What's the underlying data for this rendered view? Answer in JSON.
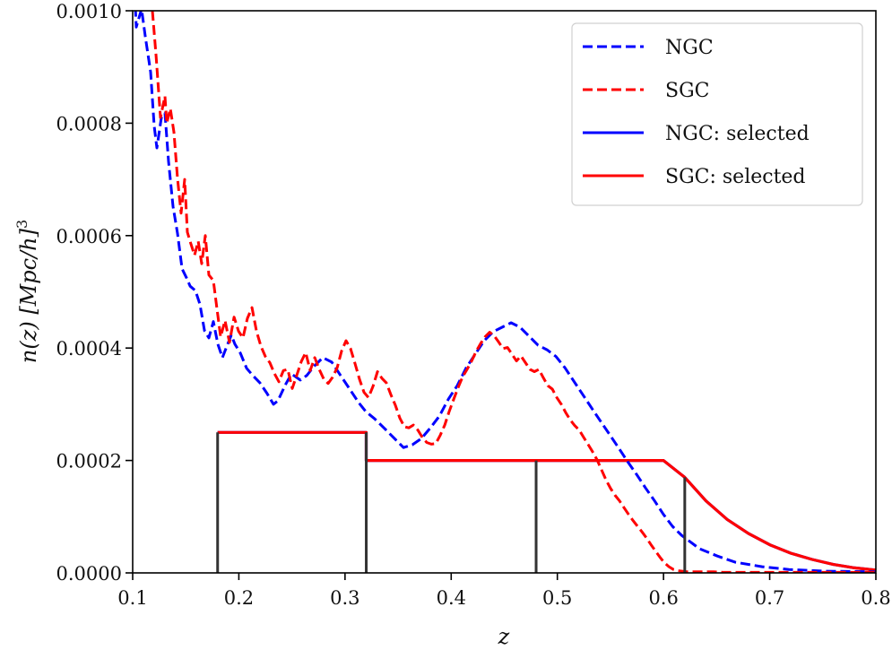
{
  "chart_data": {
    "type": "line",
    "title": "",
    "xlabel": "z",
    "ylabel": "n(z) [Mpc/h]^3",
    "xlim": [
      0.1,
      0.8
    ],
    "ylim": [
      0.0,
      0.001
    ],
    "xticks": [
      0.1,
      0.2,
      0.3,
      0.4,
      0.5,
      0.6,
      0.7,
      0.8
    ],
    "xtick_labels": [
      "0.1",
      "0.2",
      "0.3",
      "0.4",
      "0.5",
      "0.6",
      "0.7",
      "0.8"
    ],
    "yticks": [
      0.0,
      0.0002,
      0.0004,
      0.0006,
      0.0008,
      0.001
    ],
    "ytick_labels": [
      "0.0000",
      "0.0002",
      "0.0004",
      "0.0006",
      "0.0008",
      "0.0010"
    ],
    "grid": false,
    "legend_position": "upper right",
    "legend": [
      {
        "label": "NGC",
        "color": "#0000ff",
        "style": "dashed"
      },
      {
        "label": "SGC",
        "color": "#ff0000",
        "style": "dashed"
      },
      {
        "label": "NGC: selected",
        "color": "#0000ff",
        "style": "solid"
      },
      {
        "label": "SGC: selected",
        "color": "#ff0000",
        "style": "solid"
      }
    ],
    "series": [
      {
        "name": "NGC",
        "color": "#0000ff",
        "style": "dashed",
        "x": [
          0.1025,
          0.1034,
          0.1084,
          0.1118,
          0.1169,
          0.1203,
          0.1228,
          0.127,
          0.1304,
          0.1338,
          0.138,
          0.1422,
          0.1465,
          0.1507,
          0.1541,
          0.1591,
          0.1633,
          0.1676,
          0.1718,
          0.176,
          0.1802,
          0.1845,
          0.1878,
          0.1929,
          0.1963,
          0.2014,
          0.2073,
          0.2132,
          0.2199,
          0.2267,
          0.2326,
          0.2368,
          0.2436,
          0.2495,
          0.2579,
          0.2639,
          0.2706,
          0.2791,
          0.2875,
          0.2959,
          0.3044,
          0.3128,
          0.3196,
          0.328,
          0.3382,
          0.3466,
          0.3551,
          0.3635,
          0.372,
          0.3804,
          0.3889,
          0.3973,
          0.4057,
          0.4142,
          0.4226,
          0.4311,
          0.4395,
          0.448,
          0.4564,
          0.4649,
          0.4733,
          0.4818,
          0.4902,
          0.4986,
          0.5071,
          0.5155,
          0.524,
          0.5324,
          0.5409,
          0.5493,
          0.5578,
          0.5662,
          0.5747,
          0.5831,
          0.5916,
          0.6,
          0.6084,
          0.6169,
          0.6338,
          0.6507,
          0.6676,
          0.6929,
          0.7182,
          0.752,
          0.8
        ],
        "y": [
          0.001007,
          0.000971,
          0.001003,
          0.000955,
          0.000891,
          0.000795,
          0.000756,
          0.00081,
          0.000818,
          0.000732,
          0.000652,
          0.000604,
          0.000541,
          0.000525,
          0.00051,
          0.000502,
          0.000478,
          0.000431,
          0.000418,
          0.000447,
          0.000407,
          0.000383,
          0.000399,
          0.000423,
          0.000407,
          0.000391,
          0.000364,
          0.000351,
          0.000338,
          0.000319,
          0.0003,
          0.000306,
          0.000334,
          0.000354,
          0.000343,
          0.000351,
          0.000367,
          0.000383,
          0.000375,
          0.000351,
          0.000327,
          0.000303,
          0.000287,
          0.000274,
          0.000255,
          0.000239,
          0.000223,
          0.000228,
          0.000239,
          0.000258,
          0.000279,
          0.000309,
          0.000333,
          0.000365,
          0.000389,
          0.000413,
          0.000429,
          0.000437,
          0.000445,
          0.000437,
          0.000421,
          0.000405,
          0.000397,
          0.000385,
          0.000365,
          0.000341,
          0.000317,
          0.000293,
          0.000269,
          0.000246,
          0.000222,
          0.000198,
          0.000175,
          0.000151,
          0.000128,
          0.000104,
          8.3e-05,
          6.7e-05,
          4.3e-05,
          3e-05,
          1.9e-05,
          1.1e-05,
          6e-06,
          3e-06,
          2e-06
        ]
      },
      {
        "name": "SGC",
        "color": "#ff0000",
        "style": "dashed",
        "x": [
          0.1186,
          0.122,
          0.1262,
          0.1304,
          0.1321,
          0.1355,
          0.1388,
          0.1422,
          0.1456,
          0.149,
          0.1515,
          0.1549,
          0.1583,
          0.1617,
          0.165,
          0.1684,
          0.1718,
          0.176,
          0.1794,
          0.1828,
          0.187,
          0.1912,
          0.1955,
          0.1997,
          0.2039,
          0.2081,
          0.2124,
          0.2166,
          0.2208,
          0.225,
          0.2292,
          0.2334,
          0.2377,
          0.2419,
          0.2461,
          0.2503,
          0.2546,
          0.2588,
          0.263,
          0.2672,
          0.2715,
          0.2757,
          0.2799,
          0.2841,
          0.2883,
          0.2926,
          0.2968,
          0.301,
          0.3052,
          0.3095,
          0.3137,
          0.3179,
          0.3221,
          0.3264,
          0.3306,
          0.3348,
          0.339,
          0.3432,
          0.3475,
          0.3517,
          0.3559,
          0.3601,
          0.3644,
          0.3686,
          0.3728,
          0.377,
          0.3813,
          0.3855,
          0.3897,
          0.3939,
          0.3981,
          0.4024,
          0.4066,
          0.4108,
          0.415,
          0.4193,
          0.4235,
          0.4277,
          0.4319,
          0.4362,
          0.4404,
          0.4446,
          0.4488,
          0.453,
          0.4573,
          0.4615,
          0.4657,
          0.4699,
          0.4742,
          0.4784,
          0.4826,
          0.4868,
          0.491,
          0.4953,
          0.4995,
          0.5037,
          0.5079,
          0.5122,
          0.5164,
          0.5206,
          0.5248,
          0.5291,
          0.5333,
          0.5375,
          0.5417,
          0.5459,
          0.5502,
          0.5544,
          0.5586,
          0.5628,
          0.5671,
          0.5713,
          0.5755,
          0.5797,
          0.584,
          0.5882,
          0.5924,
          0.5966,
          0.6008,
          0.6051,
          0.6093,
          0.6135,
          0.6177,
          0.622,
          0.6304,
          0.6389,
          0.6473,
          0.6558,
          0.6642,
          0.6811,
          0.698,
          0.7149,
          0.7318,
          0.7487,
          0.7656,
          0.7825,
          0.8
        ],
        "y": [
          0.001,
          0.00092,
          0.00081,
          0.000848,
          0.0008,
          0.000826,
          0.000784,
          0.000702,
          0.00064,
          0.0007,
          0.000606,
          0.000585,
          0.000565,
          0.00059,
          0.00055,
          0.0006,
          0.00053,
          0.00052,
          0.00047,
          0.00042,
          0.000449,
          0.00041,
          0.000455,
          0.00043,
          0.000418,
          0.000453,
          0.000472,
          0.00043,
          0.000403,
          0.000385,
          0.000374,
          0.000355,
          0.00034,
          0.00036,
          0.000362,
          0.000328,
          0.000352,
          0.000376,
          0.000392,
          0.00036,
          0.000383,
          0.000362,
          0.000345,
          0.000337,
          0.000348,
          0.000365,
          0.000395,
          0.000413,
          0.000399,
          0.000372,
          0.000344,
          0.000321,
          0.000312,
          0.000332,
          0.000358,
          0.000346,
          0.000338,
          0.000317,
          0.000298,
          0.000275,
          0.00026,
          0.000258,
          0.000263,
          0.000254,
          0.000241,
          0.000232,
          0.000229,
          0.00023,
          0.000245,
          0.000263,
          0.000287,
          0.000309,
          0.00033,
          0.000349,
          0.000362,
          0.000377,
          0.000394,
          0.000408,
          0.00042,
          0.000428,
          0.000422,
          0.000411,
          0.000399,
          0.000401,
          0.000389,
          0.000377,
          0.000386,
          0.000374,
          0.000362,
          0.000358,
          0.000362,
          0.000347,
          0.000333,
          0.000327,
          0.000312,
          0.0003,
          0.000285,
          0.000272,
          0.000262,
          0.000254,
          0.000241,
          0.000228,
          0.000215,
          0.000201,
          0.000183,
          0.000165,
          0.00015,
          0.000138,
          0.000128,
          0.000116,
          0.000104,
          9.3e-05,
          8.3e-05,
          7.3e-05,
          6.2e-05,
          5e-05,
          3.9e-05,
          2.8e-05,
          1.8e-05,
          1.1e-05,
          6e-06,
          4e-06,
          3e-06,
          2e-06,
          2e-06,
          2e-06,
          2e-06,
          1e-06,
          1e-06,
          1e-06,
          1e-06,
          1e-06,
          1e-06,
          1e-06,
          1e-06,
          1e-06,
          1e-06
        ]
      },
      {
        "name": "NGC: selected",
        "color": "#0000ff",
        "style": "solid",
        "x": [
          0.18,
          0.32,
          0.32,
          0.6,
          0.62,
          0.64,
          0.66,
          0.68,
          0.7,
          0.72,
          0.74,
          0.76,
          0.78,
          0.8
        ],
        "y": [
          0.00025,
          0.00025,
          0.0002,
          0.0002,
          0.00017,
          0.000128,
          9.5e-05,
          7e-05,
          5e-05,
          3.5e-05,
          2.4e-05,
          1.5e-05,
          9e-06,
          5e-06
        ]
      },
      {
        "name": "SGC: selected",
        "color": "#ff0000",
        "style": "solid",
        "x": [
          0.18,
          0.32,
          0.32,
          0.6,
          0.62,
          0.64,
          0.66,
          0.68,
          0.7,
          0.72,
          0.74,
          0.76,
          0.78,
          0.8
        ],
        "y": [
          0.00025,
          0.00025,
          0.0002,
          0.0002,
          0.00017,
          0.000128,
          9.5e-05,
          7e-05,
          5e-05,
          3.5e-05,
          2.4e-05,
          1.5e-05,
          9e-06,
          5e-06
        ]
      }
    ],
    "vertical_lines": [
      {
        "x": 0.18,
        "ymax": 0.00025,
        "color": "#333333"
      },
      {
        "x": 0.32,
        "ymax": 0.00025,
        "color": "#333333"
      },
      {
        "x": 0.48,
        "ymax": 0.0002,
        "color": "#333333"
      },
      {
        "x": 0.62,
        "ymax": 0.00017,
        "color": "#333333"
      }
    ]
  }
}
